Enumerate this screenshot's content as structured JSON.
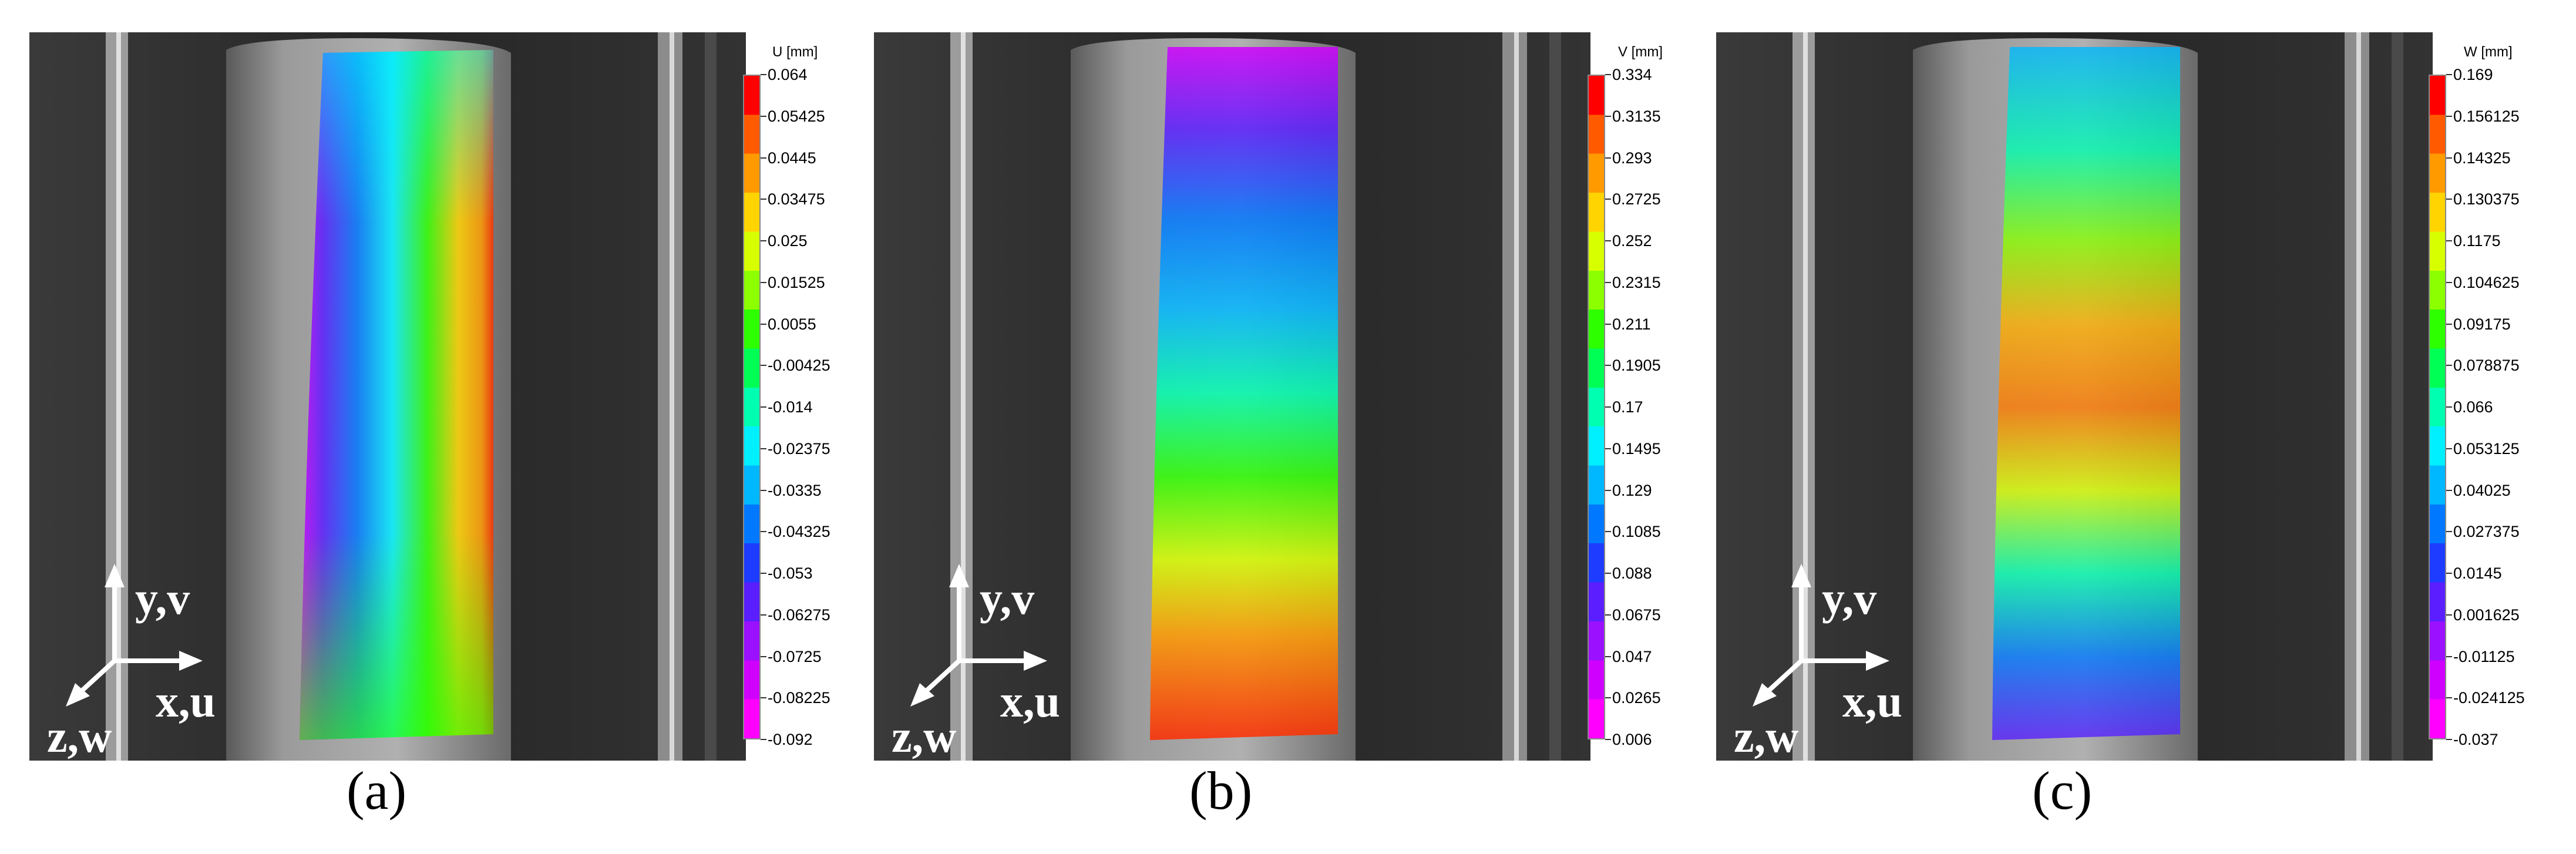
{
  "panels": [
    {
      "caption": "(a)",
      "colorbar_title": "U [mm]",
      "colorbar_ticks": [
        "0.064",
        "0.05425",
        "0.0445",
        "0.03475",
        "0.025",
        "0.01525",
        "0.0055",
        "-0.00425",
        "-0.014",
        "-0.02375",
        "-0.0335",
        "-0.04325",
        "-0.053",
        "-0.06275",
        "-0.0725",
        "-0.08225",
        "-0.092"
      ],
      "axis_labels": {
        "y": "y,v",
        "x": "x,u",
        "z": "z,w"
      },
      "field": "u-displacement"
    },
    {
      "caption": "(b)",
      "colorbar_title": "V [mm]",
      "colorbar_ticks": [
        "0.334",
        "0.3135",
        "0.293",
        "0.2725",
        "0.252",
        "0.2315",
        "0.211",
        "0.1905",
        "0.17",
        "0.1495",
        "0.129",
        "0.1085",
        "0.088",
        "0.0675",
        "0.047",
        "0.0265",
        "0.006"
      ],
      "axis_labels": {
        "y": "y,v",
        "x": "x,u",
        "z": "z,w"
      },
      "field": "v-displacement"
    },
    {
      "caption": "(c)",
      "colorbar_title": "W [mm]",
      "colorbar_ticks": [
        "0.169",
        "0.156125",
        "0.14325",
        "0.130375",
        "0.1175",
        "0.104625",
        "0.09175",
        "0.078875",
        "0.066",
        "0.053125",
        "0.04025",
        "0.027375",
        "0.0145",
        "0.001625",
        "-0.01125",
        "-0.024125",
        "-0.037"
      ],
      "axis_labels": {
        "y": "y,v",
        "x": "x,u",
        "z": "z,w"
      },
      "field": "w-displacement"
    }
  ],
  "colors": {
    "colormap": [
      "#ff0000",
      "#ff5a00",
      "#ff9a00",
      "#ffd400",
      "#d8ff00",
      "#8cff00",
      "#2eff00",
      "#00ff55",
      "#00ffb0",
      "#00f0ff",
      "#00b8ff",
      "#0078ff",
      "#1e3cff",
      "#5a1eff",
      "#9a10ff",
      "#d000ff",
      "#ff00ff"
    ],
    "background_dark": "#2a2a2a",
    "cylinder_gray": "#8a8a8a"
  }
}
